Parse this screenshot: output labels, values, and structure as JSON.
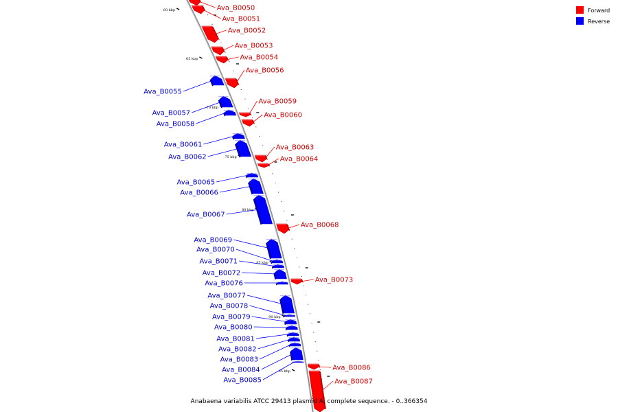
{
  "colors": {
    "forward": "#ff0000",
    "forward_dark": "#b80000",
    "forward_light": "#ff8a8a",
    "reverse": "#0000ff",
    "reverse_dark": "#0000a8",
    "reverse_light": "#8a8aff",
    "backbone": "#8a8a8a",
    "forward_label": "#cc0000",
    "reverse_label": "#0000cc"
  },
  "legend": [
    {
      "label": "Forward",
      "color": "#ff0000"
    },
    {
      "label": "Reverse",
      "color": "#0000ff"
    }
  ],
  "caption": "Anabaena variabilis ATCC 29413 plasmid A, complete sequence. - 0..366354",
  "tick_labels": [
    "60 kbp",
    "65 kbp",
    "70 kbp",
    "75 kbp",
    "80 kbp",
    "85 kbp",
    "90 kbp",
    "95 kbp"
  ],
  "forward_genes": [
    {
      "name": "Ava_B0050"
    },
    {
      "name": "Ava_B0051"
    },
    {
      "name": "Ava_B0052"
    },
    {
      "name": "Ava_B0053"
    },
    {
      "name": "Ava_B0054"
    },
    {
      "name": "Ava_B0056"
    },
    {
      "name": "Ava_B0059"
    },
    {
      "name": "Ava_B0060"
    },
    {
      "name": "Ava_B0063"
    },
    {
      "name": "Ava_B0064"
    },
    {
      "name": "Ava_B0068"
    },
    {
      "name": "Ava_B0073"
    },
    {
      "name": "Ava_B0086"
    },
    {
      "name": "Ava_B0087"
    }
  ],
  "reverse_genes": [
    {
      "name": "Ava_B0055"
    },
    {
      "name": "Ava_B0057"
    },
    {
      "name": "Ava_B0058"
    },
    {
      "name": "Ava_B0061"
    },
    {
      "name": "Ava_B0062"
    },
    {
      "name": "Ava_B0065"
    },
    {
      "name": "Ava_B0066"
    },
    {
      "name": "Ava_B0067"
    },
    {
      "name": "Ava_B0069"
    },
    {
      "name": "Ava_B0070"
    },
    {
      "name": "Ava_B0071"
    },
    {
      "name": "Ava_B0072"
    },
    {
      "name": "Ava_B0076"
    },
    {
      "name": "Ava_B0077"
    },
    {
      "name": "Ava_B0078"
    },
    {
      "name": "Ava_B0079"
    },
    {
      "name": "Ava_B0080"
    },
    {
      "name": "Ava_B0081"
    },
    {
      "name": "Ava_B0082"
    },
    {
      "name": "Ava_B0083"
    },
    {
      "name": "Ava_B0084"
    },
    {
      "name": "Ava_B0085"
    }
  ]
}
